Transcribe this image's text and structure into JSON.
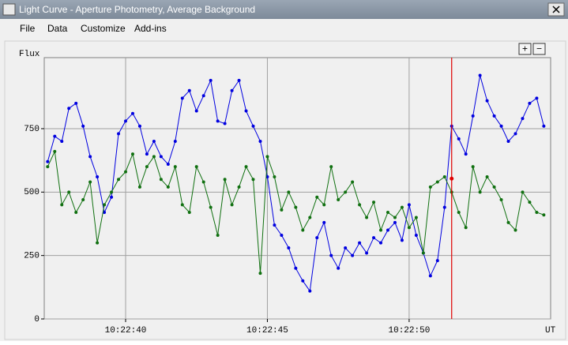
{
  "window": {
    "title": "Light Curve - Aperture Photometry, Average Background",
    "menu": [
      "File",
      "Data",
      "Customize",
      "Add-ins"
    ],
    "zoom_buttons": [
      "+",
      "−"
    ]
  },
  "chart_data": {
    "type": "line",
    "y_label": "Flux",
    "x_label": "UT",
    "x": [
      37.25,
      37.5,
      37.75,
      38,
      38.25,
      38.5,
      38.75,
      39,
      39.25,
      39.5,
      39.75,
      40,
      40.25,
      40.5,
      40.75,
      41,
      41.25,
      41.5,
      41.75,
      42,
      42.25,
      42.5,
      42.75,
      43,
      43.25,
      43.5,
      43.75,
      44,
      44.25,
      44.5,
      44.75,
      45,
      45.25,
      45.5,
      45.75,
      46,
      46.25,
      46.5,
      46.75,
      47,
      47.25,
      47.5,
      47.75,
      48,
      48.25,
      48.5,
      48.75,
      49,
      49.25,
      49.5,
      49.75,
      50,
      50.25,
      50.5,
      50.75,
      51,
      51.25,
      51.5,
      51.75,
      52,
      52.25,
      52.5,
      52.75,
      53,
      53.25,
      53.5,
      53.75,
      54,
      54.25,
      54.5,
      54.75
    ],
    "series": [
      {
        "color": "#0000e0",
        "values": [
          620,
          720,
          700,
          830,
          850,
          760,
          640,
          560,
          420,
          480,
          730,
          780,
          810,
          760,
          650,
          700,
          640,
          610,
          700,
          870,
          900,
          820,
          880,
          940,
          780,
          770,
          900,
          940,
          820,
          760,
          700,
          560,
          370,
          330,
          280,
          200,
          150,
          110,
          320,
          380,
          250,
          200,
          280,
          250,
          300,
          260,
          320,
          300,
          350,
          380,
          310,
          450,
          330,
          260,
          170,
          230,
          440,
          760,
          710,
          650,
          800,
          960,
          860,
          800,
          760,
          700,
          730,
          790,
          850,
          870,
          760
        ]
      },
      {
        "color": "#107010",
        "values": [
          600,
          660,
          450,
          500,
          420,
          470,
          540,
          300,
          450,
          500,
          550,
          580,
          650,
          520,
          600,
          640,
          550,
          520,
          600,
          450,
          420,
          600,
          540,
          440,
          330,
          550,
          450,
          520,
          600,
          550,
          180,
          640,
          560,
          430,
          500,
          440,
          350,
          400,
          480,
          450,
          600,
          470,
          500,
          540,
          450,
          400,
          460,
          350,
          420,
          400,
          440,
          360,
          400,
          260,
          520,
          540,
          560,
          500,
          420,
          360,
          600,
          500,
          560,
          520,
          470,
          380,
          350,
          500,
          460,
          420,
          410
        ]
      }
    ],
    "xlim": [
      37.13,
      54.99
    ],
    "ylim": [
      0,
      1030
    ],
    "xticks": [
      {
        "value": 40,
        "label": "10:22:40"
      },
      {
        "value": 45,
        "label": "10:22:45"
      },
      {
        "value": 50,
        "label": "10:22:50"
      }
    ],
    "yticks": [
      0,
      250,
      500,
      750
    ],
    "grid": true,
    "cursor": {
      "x": 51.5,
      "y": 553,
      "color": "#e00000"
    }
  }
}
